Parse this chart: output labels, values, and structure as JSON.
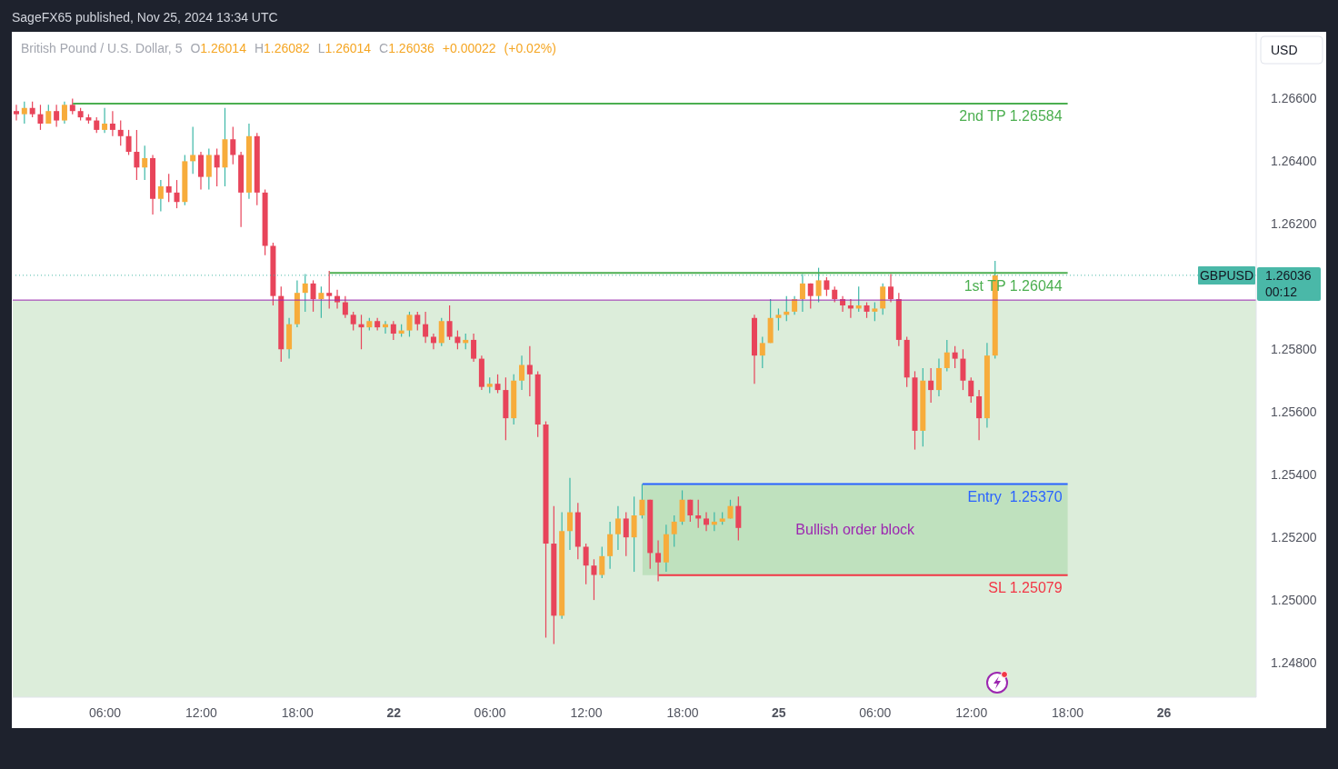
{
  "chart_data": {
    "type": "candlestick",
    "title": "British Pound / U.S. Dollar, 5",
    "subtitle": "O1.26014 H1.26082 L1.26014 C1.26036 +0.00022 (+0.02%)",
    "ylabel": "USD",
    "annotations": [
      "SageFX65 published, Nov 25, 2024 13:34 UTC",
      "GBPUSD",
      "00:12",
      "Bullish order block"
    ],
    "categories": [
      null,
      null,
      null,
      null,
      null,
      null,
      null,
      null,
      null,
      null,
      null,
      "06:00",
      null,
      null,
      null,
      null,
      null,
      null,
      null,
      null,
      null,
      null,
      null,
      "12:00",
      null,
      null,
      null,
      null,
      null,
      null,
      null,
      null,
      null,
      null,
      null,
      "18:00",
      null,
      null,
      null,
      null,
      null,
      null,
      null,
      null,
      null,
      null,
      null,
      "22",
      null,
      null,
      null,
      null,
      null,
      null,
      null,
      null,
      null,
      null,
      null,
      "06:00",
      null,
      null,
      null,
      null,
      null,
      null,
      null,
      null,
      null,
      null,
      null,
      "12:00",
      null,
      null,
      null,
      null,
      null,
      null,
      null,
      null,
      null,
      null,
      null,
      "18:00",
      null,
      null,
      null,
      null,
      null,
      null,
      null,
      null,
      null,
      null,
      null,
      "25",
      null,
      null,
      null,
      null,
      null,
      null,
      null,
      null,
      null,
      null,
      null,
      "06:00",
      null,
      null,
      null,
      null,
      null,
      null,
      null,
      null,
      null,
      null,
      null,
      "12:00",
      null,
      null,
      null,
      null,
      null,
      null,
      null,
      null,
      null,
      null,
      null,
      "18:00",
      null,
      null,
      null,
      null,
      null,
      null,
      null,
      null,
      null,
      null,
      null,
      "26",
      null,
      null,
      null,
      null,
      null,
      null,
      null,
      null,
      null,
      null,
      null
    ],
    "ylim": [
      1.2469,
      1.2681
    ],
    "yticks": [
      {
        "value": 1.248,
        "label": "1.24800"
      },
      {
        "value": 1.25,
        "label": "1.25000"
      },
      {
        "value": 1.252,
        "label": "1.25200"
      },
      {
        "value": 1.254,
        "label": "1.25400"
      },
      {
        "value": 1.256,
        "label": "1.25600"
      },
      {
        "value": 1.258,
        "label": "1.25800"
      },
      {
        "value": 1.262,
        "label": "1.26200"
      },
      {
        "value": 1.264,
        "label": "1.26400"
      },
      {
        "value": 1.266,
        "label": "1.26600"
      }
    ],
    "bands": [
      {
        "axis": "y",
        "from": 1.2469,
        "to": 1.25957,
        "color": "#dcedda"
      }
    ],
    "ref_lines": [
      {
        "axis": "y",
        "value": 1.25957,
        "color": "#9c27b0"
      },
      {
        "axis": "y",
        "value": 1.26036,
        "label": "1.26036",
        "color": "#4ab8a8",
        "line_style": "dotted"
      }
    ],
    "series": [
      {
        "color": "#3db8a7",
        "ohlc": [
          [
            1.2656,
            1.2658,
            1.2653,
            1.2655
          ],
          [
            1.2655,
            1.2659,
            1.2652,
            1.2657
          ],
          [
            1.2657,
            1.2659,
            1.2654,
            1.2655
          ],
          [
            1.2655,
            1.2658,
            1.265,
            1.2652
          ],
          [
            1.2652,
            1.2658,
            1.2652,
            1.2656
          ],
          [
            1.2656,
            1.2658,
            1.2651,
            1.2653
          ],
          [
            1.2653,
            1.2659,
            1.2652,
            1.2658
          ],
          [
            1.2658,
            1.266,
            1.2655,
            1.2656
          ],
          [
            1.2656,
            1.2657,
            1.2653,
            1.2654
          ],
          [
            1.2654,
            1.2655,
            1.2652,
            1.2653
          ],
          [
            1.2653,
            1.2654,
            1.2649,
            1.265
          ],
          [
            1.265,
            1.2657,
            1.2649,
            1.2652
          ],
          [
            1.2652,
            1.2656,
            1.2648,
            1.265
          ],
          [
            1.265,
            1.2653,
            1.2645,
            1.2648
          ],
          [
            1.2648,
            1.265,
            1.2642,
            1.2643
          ],
          [
            1.2643,
            1.265,
            1.2634,
            1.2638
          ],
          [
            1.2638,
            1.2645,
            1.2634,
            1.2641
          ],
          [
            1.2641,
            1.2642,
            1.2623,
            1.2628
          ],
          [
            1.2628,
            1.2634,
            1.2624,
            1.2632
          ],
          [
            1.2632,
            1.2636,
            1.2627,
            1.263
          ],
          [
            1.263,
            1.2634,
            1.2625,
            1.2627
          ],
          [
            1.2627,
            1.2642,
            1.2626,
            1.264
          ],
          [
            1.264,
            1.2651,
            1.2636,
            1.2642
          ],
          [
            1.2642,
            1.2643,
            1.2631,
            1.2635
          ],
          [
            1.2635,
            1.2644,
            1.2631,
            1.2642
          ],
          [
            1.2642,
            1.2644,
            1.2632,
            1.2638
          ],
          [
            1.2638,
            1.2657,
            1.2632,
            1.2647
          ],
          [
            1.2647,
            1.2651,
            1.2639,
            1.2642
          ],
          [
            1.2642,
            1.2643,
            1.2619,
            1.263
          ],
          [
            1.263,
            1.2652,
            1.2628,
            1.2648
          ],
          [
            1.2648,
            1.2649,
            1.2626,
            1.263
          ],
          [
            1.263,
            1.2631,
            1.261,
            1.2613
          ],
          [
            1.2613,
            1.2614,
            1.2594,
            1.2597
          ],
          [
            1.2597,
            1.26,
            1.2576,
            1.258
          ],
          [
            1.258,
            1.259,
            1.2577,
            1.2588
          ],
          [
            1.2588,
            1.2602,
            1.2587,
            1.2598
          ],
          [
            1.2598,
            1.2604,
            1.2592,
            1.2601
          ],
          [
            1.2601,
            1.2602,
            1.2592,
            1.2596
          ],
          [
            1.2596,
            1.26,
            1.259,
            1.2598
          ],
          [
            1.2598,
            1.2605,
            1.2593,
            1.2597
          ],
          [
            1.2597,
            1.2599,
            1.2593,
            1.2595
          ],
          [
            1.2595,
            1.2597,
            1.259,
            1.2591
          ],
          [
            1.2591,
            1.2592,
            1.2586,
            1.2588
          ],
          [
            1.2588,
            1.2591,
            1.258,
            1.2587
          ],
          [
            1.2587,
            1.259,
            1.2586,
            1.2589
          ],
          [
            1.2589,
            1.259,
            1.2586,
            1.2587
          ],
          [
            1.2587,
            1.2589,
            1.2585,
            1.2588
          ],
          [
            1.2588,
            1.2589,
            1.2583,
            1.2585
          ],
          [
            1.2585,
            1.2588,
            1.2584,
            1.2586
          ],
          [
            1.2586,
            1.2592,
            1.2584,
            1.2591
          ],
          [
            1.2591,
            1.2592,
            1.2586,
            1.2588
          ],
          [
            1.2588,
            1.2592,
            1.2582,
            1.2584
          ],
          [
            1.2584,
            1.2585,
            1.258,
            1.2582
          ],
          [
            1.2582,
            1.259,
            1.2581,
            1.2589
          ],
          [
            1.2589,
            1.2594,
            1.2583,
            1.2584
          ],
          [
            1.2584,
            1.2586,
            1.258,
            1.2582
          ],
          [
            1.2582,
            1.2585,
            1.258,
            1.2583
          ],
          [
            1.2583,
            1.2585,
            1.2576,
            1.2577
          ],
          [
            1.2577,
            1.2578,
            1.2567,
            1.2568
          ],
          [
            1.2568,
            1.2571,
            1.2566,
            1.2569
          ],
          [
            1.2569,
            1.2572,
            1.2566,
            1.2567
          ],
          [
            1.2567,
            1.2571,
            1.2551,
            1.2558
          ],
          [
            1.2558,
            1.2572,
            1.2556,
            1.257
          ],
          [
            1.257,
            1.2578,
            1.2567,
            1.2575
          ],
          [
            1.2575,
            1.2581,
            1.2565,
            1.2572
          ],
          [
            1.2572,
            1.2573,
            1.2552,
            1.2556
          ],
          [
            1.2556,
            1.2557,
            1.2488,
            1.2518
          ],
          [
            1.2518,
            1.253,
            1.2486,
            1.2495
          ],
          [
            1.2495,
            1.2528,
            1.2494,
            1.2522
          ],
          [
            1.2522,
            1.2539,
            1.2516,
            1.2528
          ],
          [
            1.2528,
            1.2531,
            1.2513,
            1.2517
          ],
          [
            1.2517,
            1.2518,
            1.2505,
            1.2511
          ],
          [
            1.2511,
            1.2513,
            1.25,
            1.2508
          ],
          [
            1.2508,
            1.2517,
            1.2507,
            1.2514
          ],
          [
            1.2514,
            1.2525,
            1.251,
            1.2521
          ],
          [
            1.2521,
            1.253,
            1.2516,
            1.2526
          ],
          [
            1.2526,
            1.2528,
            1.2514,
            1.252
          ],
          [
            1.252,
            1.2533,
            1.2509,
            1.2527
          ],
          [
            1.2527,
            1.2537,
            1.2526,
            1.2532
          ],
          [
            1.2532,
            1.2532,
            1.251,
            1.2515
          ],
          [
            1.2515,
            1.2519,
            1.2506,
            1.2512
          ],
          [
            1.2512,
            1.2524,
            1.2509,
            1.2521
          ],
          [
            1.2521,
            1.2527,
            1.2517,
            1.2525
          ],
          [
            1.2525,
            1.2535,
            1.2524,
            1.2532
          ],
          [
            1.2532,
            1.2532,
            1.2525,
            1.2527
          ],
          [
            1.2527,
            1.2532,
            1.2523,
            1.2526
          ],
          [
            1.2526,
            1.2528,
            1.2522,
            1.2524
          ],
          [
            1.2524,
            1.2528,
            1.2522,
            1.2525
          ],
          [
            1.2525,
            1.2528,
            1.2524,
            1.2526
          ],
          [
            1.2526,
            1.2532,
            1.2526,
            1.253
          ],
          [
            1.253,
            1.2533,
            1.2519,
            1.2523
          ],
          null,
          [
            1.259,
            1.2591,
            1.2569,
            1.2578
          ],
          [
            1.2578,
            1.2584,
            1.2574,
            1.2582
          ],
          [
            1.2582,
            1.2596,
            1.2582,
            1.259
          ],
          [
            1.259,
            1.2593,
            1.2586,
            1.2591
          ],
          [
            1.2591,
            1.2597,
            1.2589,
            1.2592
          ],
          [
            1.2592,
            1.2597,
            1.2591,
            1.2596
          ],
          [
            1.2596,
            1.2604,
            1.2592,
            1.2601
          ],
          [
            1.2601,
            1.2601,
            1.2593,
            1.2597
          ],
          [
            1.2597,
            1.2606,
            1.2595,
            1.2602
          ],
          [
            1.2602,
            1.2603,
            1.2597,
            1.2599
          ],
          [
            1.2599,
            1.26,
            1.2595,
            1.2596
          ],
          [
            1.2596,
            1.2597,
            1.2592,
            1.2594
          ],
          [
            1.2594,
            1.2596,
            1.259,
            1.2593
          ],
          [
            1.2593,
            1.26,
            1.2592,
            1.2594
          ],
          [
            1.2594,
            1.2595,
            1.259,
            1.2592
          ],
          [
            1.2592,
            1.2595,
            1.2589,
            1.2593
          ],
          [
            1.2593,
            1.2601,
            1.2591,
            1.26
          ],
          [
            1.26,
            1.2604,
            1.2595,
            1.2596
          ],
          [
            1.2596,
            1.2598,
            1.2581,
            1.2583
          ],
          [
            1.2583,
            1.2584,
            1.2568,
            1.2571
          ],
          [
            1.2571,
            1.2573,
            1.2548,
            1.2554
          ],
          [
            1.2554,
            1.2574,
            1.2549,
            1.257
          ],
          [
            1.257,
            1.2574,
            1.2563,
            1.2567
          ],
          [
            1.2567,
            1.2577,
            1.2565,
            1.2574
          ],
          [
            1.2574,
            1.2583,
            1.2573,
            1.2579
          ],
          [
            1.2579,
            1.2581,
            1.2574,
            1.2577
          ],
          [
            1.2577,
            1.258,
            1.2567,
            1.257
          ],
          [
            1.257,
            1.2571,
            1.2563,
            1.2565
          ],
          [
            1.2565,
            1.2567,
            1.2551,
            1.2558
          ],
          [
            1.2558,
            1.2582,
            1.2555,
            1.2578
          ],
          [
            1.2578,
            1.26082,
            1.2577,
            1.26036
          ],
          null,
          null,
          null,
          null,
          null,
          null,
          null,
          null,
          null,
          null,
          null,
          null,
          null,
          null,
          null,
          null,
          null,
          null,
          null,
          null,
          null,
          null,
          null,
          null,
          null,
          null,
          null,
          null,
          null,
          null,
          null,
          null
        ],
        "colors": [
          "#e8445a",
          "#f7ac3b",
          "#e8445a",
          "#e8445a",
          "#f7ac3b",
          "#e8445a",
          "#f7ac3b",
          "#e8445a",
          "#e8445a",
          "#e8445a",
          "#e8445a",
          "#f7ac3b",
          "#e8445a",
          "#e8445a",
          "#e8445a",
          "#e8445a",
          "#f7ac3b",
          "#e8445a",
          "#f7ac3b",
          "#e8445a",
          "#e8445a",
          "#f7ac3b",
          "#f7ac3b",
          "#e8445a",
          "#f7ac3b",
          "#e8445a",
          "#f7ac3b",
          "#e8445a",
          "#e8445a",
          "#f7ac3b",
          "#e8445a",
          "#e8445a",
          "#e8445a",
          "#e8445a",
          "#f7ac3b",
          "#f7ac3b",
          "#f7ac3b",
          "#e8445a",
          "#f7ac3b",
          "#e8445a",
          "#e8445a",
          "#e8445a",
          "#e8445a",
          "#e8445a",
          "#f7ac3b",
          "#e8445a",
          "#f7ac3b",
          "#e8445a",
          "#f7ac3b",
          "#f7ac3b",
          "#e8445a",
          "#e8445a",
          "#e8445a",
          "#f7ac3b",
          "#e8445a",
          "#e8445a",
          "#f7ac3b",
          "#e8445a",
          "#e8445a",
          "#f7ac3b",
          "#e8445a",
          "#e8445a",
          "#f7ac3b",
          "#f7ac3b",
          "#e8445a",
          "#e8445a",
          "#e8445a",
          "#e8445a",
          "#f7ac3b",
          "#f7ac3b",
          "#e8445a",
          "#e8445a",
          "#e8445a",
          "#f7ac3b",
          "#f7ac3b",
          "#f7ac3b",
          "#e8445a",
          "#f7ac3b",
          "#f7ac3b",
          "#e8445a",
          "#e8445a",
          "#f7ac3b",
          "#f7ac3b",
          "#f7ac3b",
          "#e8445a",
          "#e8445a",
          "#e8445a",
          "#f7ac3b",
          "#f7ac3b",
          "#f7ac3b",
          "#e8445a",
          null,
          "#e8445a",
          "#f7ac3b",
          "#f7ac3b",
          "#f7ac3b",
          "#f7ac3b",
          "#f7ac3b",
          "#f7ac3b",
          "#e8445a",
          "#f7ac3b",
          "#e8445a",
          "#e8445a",
          "#e8445a",
          "#e8445a",
          "#f7ac3b",
          "#e8445a",
          "#f7ac3b",
          "#f7ac3b",
          "#e8445a",
          "#e8445a",
          "#e8445a",
          "#e8445a",
          "#f7ac3b",
          "#e8445a",
          "#f7ac3b",
          "#f7ac3b",
          "#e8445a",
          "#e8445a",
          "#e8445a",
          "#e8445a",
          "#f7ac3b",
          "#f7ac3b",
          null,
          null,
          null,
          null,
          null,
          null,
          null,
          null,
          null,
          null,
          null,
          null,
          null,
          null,
          null,
          null,
          null,
          null,
          null,
          null,
          null,
          null,
          null,
          null,
          null,
          null,
          null,
          null,
          null,
          null,
          null,
          null
        ]
      },
      {
        "type": "line",
        "name": "2nd TP 1.26584",
        "color": "#4caf50",
        "values": [
          null,
          null,
          null,
          null,
          null,
          null,
          null,
          1.26584,
          1.26584,
          1.26584,
          1.26584,
          1.26584,
          1.26584,
          1.26584,
          1.26584,
          1.26584,
          1.26584,
          1.26584,
          1.26584,
          1.26584,
          1.26584,
          1.26584,
          1.26584,
          1.26584,
          1.26584,
          1.26584,
          1.26584,
          1.26584,
          1.26584,
          1.26584,
          1.26584,
          1.26584,
          1.26584,
          1.26584,
          1.26584,
          1.26584,
          1.26584,
          1.26584,
          1.26584,
          1.26584,
          1.26584,
          1.26584,
          1.26584,
          1.26584,
          1.26584,
          1.26584,
          1.26584,
          1.26584,
          1.26584,
          1.26584,
          1.26584,
          1.26584,
          1.26584,
          1.26584,
          1.26584,
          1.26584,
          1.26584,
          1.26584,
          1.26584,
          1.26584,
          1.26584,
          1.26584,
          1.26584,
          1.26584,
          1.26584,
          1.26584,
          1.26584,
          1.26584,
          1.26584,
          1.26584,
          1.26584,
          1.26584,
          1.26584,
          1.26584,
          1.26584,
          1.26584,
          1.26584,
          1.26584,
          1.26584,
          1.26584,
          1.26584,
          1.26584,
          1.26584,
          1.26584,
          1.26584,
          1.26584,
          1.26584,
          1.26584,
          1.26584,
          1.26584,
          1.26584,
          1.26584,
          1.26584,
          1.26584,
          1.26584,
          1.26584,
          1.26584,
          1.26584,
          1.26584,
          1.26584,
          1.26584,
          1.26584,
          1.26584,
          1.26584,
          1.26584,
          1.26584,
          1.26584,
          1.26584,
          1.26584,
          1.26584,
          1.26584,
          1.26584,
          1.26584,
          1.26584,
          1.26584,
          1.26584,
          1.26584,
          1.26584,
          1.26584,
          1.26584,
          1.26584,
          1.26584,
          1.26584,
          1.26584,
          1.26584,
          1.26584,
          1.26584,
          1.26584,
          1.26584,
          1.26584,
          1.26584,
          1.26584,
          null,
          null,
          null,
          null,
          null,
          null,
          null,
          null,
          null,
          null,
          null,
          null,
          null,
          null,
          null,
          null,
          null,
          null,
          null,
          null,
          null,
          null,
          null
        ]
      },
      {
        "type": "line",
        "name": "1st TP 1.26044",
        "color": "#4caf50",
        "values": [
          null,
          null,
          null,
          null,
          null,
          null,
          null,
          null,
          null,
          null,
          null,
          null,
          null,
          null,
          null,
          null,
          null,
          null,
          null,
          null,
          null,
          null,
          null,
          null,
          null,
          null,
          null,
          null,
          null,
          null,
          null,
          null,
          null,
          null,
          null,
          null,
          null,
          null,
          null,
          1.26044,
          1.26044,
          1.26044,
          1.26044,
          1.26044,
          1.26044,
          1.26044,
          1.26044,
          1.26044,
          1.26044,
          1.26044,
          1.26044,
          1.26044,
          1.26044,
          1.26044,
          1.26044,
          1.26044,
          1.26044,
          1.26044,
          1.26044,
          1.26044,
          1.26044,
          1.26044,
          1.26044,
          1.26044,
          1.26044,
          1.26044,
          1.26044,
          1.26044,
          1.26044,
          1.26044,
          1.26044,
          1.26044,
          1.26044,
          1.26044,
          1.26044,
          1.26044,
          1.26044,
          1.26044,
          1.26044,
          1.26044,
          1.26044,
          1.26044,
          1.26044,
          1.26044,
          1.26044,
          1.26044,
          1.26044,
          1.26044,
          1.26044,
          1.26044,
          1.26044,
          1.26044,
          1.26044,
          1.26044,
          1.26044,
          1.26044,
          1.26044,
          1.26044,
          1.26044,
          1.26044,
          1.26044,
          1.26044,
          1.26044,
          1.26044,
          1.26044,
          1.26044,
          1.26044,
          1.26044,
          1.26044,
          1.26044,
          1.26044,
          1.26044,
          1.26044,
          1.26044,
          1.26044,
          1.26044,
          1.26044,
          1.26044,
          1.26044,
          1.26044,
          1.26044,
          1.26044,
          1.26044,
          1.26044,
          1.26044,
          1.26044,
          1.26044,
          1.26044,
          1.26044,
          1.26044,
          1.26044,
          1.26044,
          null,
          null,
          null,
          null,
          null,
          null,
          null,
          null,
          null,
          null,
          null,
          null,
          null,
          null,
          null,
          null,
          null,
          null,
          null,
          null,
          null,
          null,
          null
        ]
      },
      {
        "type": "line",
        "name": "Entry  1.25370",
        "color": "#2962ff",
        "values": [
          null,
          null,
          null,
          null,
          null,
          null,
          null,
          null,
          null,
          null,
          null,
          null,
          null,
          null,
          null,
          null,
          null,
          null,
          null,
          null,
          null,
          null,
          null,
          null,
          null,
          null,
          null,
          null,
          null,
          null,
          null,
          null,
          null,
          null,
          null,
          null,
          null,
          null,
          null,
          null,
          null,
          null,
          null,
          null,
          null,
          null,
          null,
          null,
          null,
          null,
          null,
          null,
          null,
          null,
          null,
          null,
          null,
          null,
          null,
          null,
          null,
          null,
          null,
          null,
          null,
          null,
          null,
          null,
          null,
          null,
          null,
          null,
          null,
          null,
          null,
          null,
          null,
          null,
          1.2537,
          1.2537,
          1.2537,
          1.2537,
          1.2537,
          1.2537,
          1.2537,
          1.2537,
          1.2537,
          1.2537,
          1.2537,
          1.2537,
          1.2537,
          1.2537,
          1.2537,
          1.2537,
          1.2537,
          1.2537,
          1.2537,
          1.2537,
          1.2537,
          1.2537,
          1.2537,
          1.2537,
          1.2537,
          1.2537,
          1.2537,
          1.2537,
          1.2537,
          1.2537,
          1.2537,
          1.2537,
          1.2537,
          1.2537,
          1.2537,
          1.2537,
          1.2537,
          1.2537,
          1.2537,
          1.2537,
          1.2537,
          1.2537,
          1.2537,
          1.2537,
          1.2537,
          1.2537,
          1.2537,
          1.2537,
          1.2537,
          1.2537,
          1.2537,
          1.2537,
          1.2537,
          1.2537,
          null,
          null,
          null,
          null,
          null,
          null,
          null,
          null,
          null,
          null,
          null,
          null,
          null,
          null,
          null,
          null,
          null,
          null,
          null,
          null,
          null,
          null,
          null
        ],
        "lower": [
          null,
          null,
          null,
          null,
          null,
          null,
          null,
          null,
          null,
          null,
          null,
          null,
          null,
          null,
          null,
          null,
          null,
          null,
          null,
          null,
          null,
          null,
          null,
          null,
          null,
          null,
          null,
          null,
          null,
          null,
          null,
          null,
          null,
          null,
          null,
          null,
          null,
          null,
          null,
          null,
          null,
          null,
          null,
          null,
          null,
          null,
          null,
          null,
          null,
          null,
          null,
          null,
          null,
          null,
          null,
          null,
          null,
          null,
          null,
          null,
          null,
          null,
          null,
          null,
          null,
          null,
          null,
          null,
          null,
          null,
          null,
          null,
          null,
          null,
          null,
          null,
          null,
          null,
          1.25079,
          1.25079,
          1.25079,
          1.25079,
          1.25079,
          1.25079,
          1.25079,
          1.25079,
          1.25079,
          1.25079,
          1.25079,
          1.25079,
          1.25079,
          1.25079,
          1.25079,
          1.25079,
          1.25079,
          1.25079,
          1.25079,
          1.25079,
          1.25079,
          1.25079,
          1.25079,
          1.25079,
          1.25079,
          1.25079,
          1.25079,
          1.25079,
          1.25079,
          1.25079,
          1.25079,
          1.25079,
          1.25079,
          1.25079,
          1.25079,
          1.25079,
          1.25079,
          1.25079,
          1.25079,
          1.25079,
          1.25079,
          1.25079,
          1.25079,
          1.25079,
          1.25079,
          1.25079,
          1.25079,
          1.25079,
          1.25079,
          1.25079,
          1.25079,
          1.25079,
          1.25079,
          1.25079,
          null,
          null,
          null,
          null,
          null,
          null,
          null,
          null,
          null,
          null,
          null,
          null,
          null,
          null,
          null,
          null,
          null,
          null,
          null,
          null,
          null,
          null,
          null
        ],
        "upper": [
          null,
          null,
          null,
          null,
          null,
          null,
          null,
          null,
          null,
          null,
          null,
          null,
          null,
          null,
          null,
          null,
          null,
          null,
          null,
          null,
          null,
          null,
          null,
          null,
          null,
          null,
          null,
          null,
          null,
          null,
          null,
          null,
          null,
          null,
          null,
          null,
          null,
          null,
          null,
          null,
          null,
          null,
          null,
          null,
          null,
          null,
          null,
          null,
          null,
          null,
          null,
          null,
          null,
          null,
          null,
          null,
          null,
          null,
          null,
          null,
          null,
          null,
          null,
          null,
          null,
          null,
          null,
          null,
          null,
          null,
          null,
          null,
          null,
          null,
          null,
          null,
          null,
          null,
          1.2537,
          1.2537,
          1.2537,
          1.2537,
          1.2537,
          1.2537,
          1.2537,
          1.2537,
          1.2537,
          1.2537,
          1.2537,
          1.2537,
          1.2537,
          1.2537,
          1.2537,
          1.2537,
          1.2537,
          1.2537,
          1.2537,
          1.2537,
          1.2537,
          1.2537,
          1.2537,
          1.2537,
          1.2537,
          1.2537,
          1.2537,
          1.2537,
          1.2537,
          1.2537,
          1.2537,
          1.2537,
          1.2537,
          1.2537,
          1.2537,
          1.2537,
          1.2537,
          1.2537,
          1.2537,
          1.2537,
          1.2537,
          1.2537,
          1.2537,
          1.2537,
          1.2537,
          1.2537,
          1.2537,
          1.2537,
          1.2537,
          1.2537,
          1.2537,
          1.2537,
          1.2537,
          1.2537,
          null,
          null,
          null,
          null,
          null,
          null,
          null,
          null,
          null,
          null,
          null,
          null,
          null,
          null,
          null,
          null,
          null,
          null,
          null,
          null,
          null,
          null,
          null
        ]
      },
      {
        "type": "line",
        "name": "SL 1.25079",
        "color": "#f23645",
        "values": [
          null,
          null,
          null,
          null,
          null,
          null,
          null,
          null,
          null,
          null,
          null,
          null,
          null,
          null,
          null,
          null,
          null,
          null,
          null,
          null,
          null,
          null,
          null,
          null,
          null,
          null,
          null,
          null,
          null,
          null,
          null,
          null,
          null,
          null,
          null,
          null,
          null,
          null,
          null,
          null,
          null,
          null,
          null,
          null,
          null,
          null,
          null,
          null,
          null,
          null,
          null,
          null,
          null,
          null,
          null,
          null,
          null,
          null,
          null,
          null,
          null,
          null,
          null,
          null,
          null,
          null,
          null,
          null,
          null,
          null,
          null,
          null,
          null,
          null,
          null,
          null,
          null,
          null,
          null,
          null,
          1.25079,
          1.25079,
          1.25079,
          1.25079,
          1.25079,
          1.25079,
          1.25079,
          1.25079,
          1.25079,
          1.25079,
          1.25079,
          1.25079,
          1.25079,
          1.25079,
          1.25079,
          1.25079,
          1.25079,
          1.25079,
          1.25079,
          1.25079,
          1.25079,
          1.25079,
          1.25079,
          1.25079,
          1.25079,
          1.25079,
          1.25079,
          1.25079,
          1.25079,
          1.25079,
          1.25079,
          1.25079,
          1.25079,
          1.25079,
          1.25079,
          1.25079,
          1.25079,
          1.25079,
          1.25079,
          1.25079,
          1.25079,
          1.25079,
          1.25079,
          1.25079,
          1.25079,
          1.25079,
          1.25079,
          1.25079,
          1.25079,
          1.25079,
          1.25079,
          1.25079,
          null,
          null,
          null,
          null,
          null,
          null,
          null,
          null,
          null,
          null,
          null,
          null,
          null,
          null,
          null,
          null,
          null,
          null,
          null,
          null,
          null,
          null,
          null
        ]
      }
    ]
  }
}
